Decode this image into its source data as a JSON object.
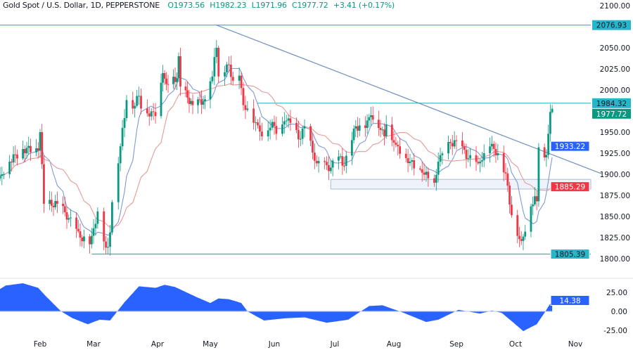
{
  "header": {
    "symbol": "Gold Spot / U.S. Dollar, 1D, PEPPERSTONE",
    "open": "O1973.56",
    "high": "H1982.23",
    "low": "L1971.96",
    "close": "C1977.72",
    "change": "+3.41 (+0.17%)"
  },
  "colors": {
    "up": "#089981",
    "down": "#f23645",
    "fast_ma": "#7e9ad6",
    "slow_ma": "#e59a9a",
    "level": "#26b6c9",
    "trendline": "#6f8fbf",
    "oscillator": "#2962ff",
    "last_price": "#089981"
  },
  "chart_data": [
    {
      "type": "candlestick",
      "title": "Gold Spot / U.S. Dollar, 1D, PEPPERSTONE",
      "y_axis_ticks": [
        "2100.00",
        "2050.00",
        "2025.00",
        "2000.00",
        "1950.00",
        "1925.00",
        "1900.00",
        "1875.00",
        "1850.00",
        "1825.00",
        "1800.00"
      ],
      "x_axis_ticks": [
        "Feb",
        "Mar",
        "Apr",
        "May",
        "Jun",
        "Jul",
        "Aug",
        "Sep",
        "Oct",
        "Nov"
      ],
      "ylim": [
        1800,
        2100
      ],
      "grid": false,
      "last_bar": {
        "date": "2023-10-20",
        "open": 1973.56,
        "high": 1982.23,
        "low": 1971.96,
        "close": 1977.72
      },
      "close_path": [
        [
          "2023-01-11",
          1898
        ],
        [
          "2023-01-16",
          1915
        ],
        [
          "2023-01-23",
          1930
        ],
        [
          "2023-01-31",
          1928
        ],
        [
          "2023-02-01",
          1950
        ],
        [
          "2023-02-02",
          1912
        ],
        [
          "2023-02-03",
          1865
        ],
        [
          "2023-02-10",
          1865
        ],
        [
          "2023-02-14",
          1855
        ],
        [
          "2023-02-22",
          1825
        ],
        [
          "2023-02-27",
          1817
        ],
        [
          "2023-02-28",
          1827
        ],
        [
          "2023-03-01",
          1836
        ],
        [
          "2023-03-03",
          1856
        ],
        [
          "2023-03-07",
          1813
        ],
        [
          "2023-03-08",
          1814
        ],
        [
          "2023-03-09",
          1831
        ],
        [
          "2023-03-10",
          1867
        ],
        [
          "2023-03-13",
          1913
        ],
        [
          "2023-03-17",
          1988
        ],
        [
          "2023-03-20",
          1978
        ],
        [
          "2023-03-23",
          1993
        ],
        [
          "2023-03-24",
          1978
        ],
        [
          "2023-03-31",
          1969
        ],
        [
          "2023-04-04",
          2020
        ],
        [
          "2023-04-06",
          2007
        ],
        [
          "2023-04-12",
          2014
        ],
        [
          "2023-04-13",
          2040
        ],
        [
          "2023-04-14",
          2004
        ],
        [
          "2023-04-21",
          1982
        ],
        [
          "2023-04-28",
          1989
        ],
        [
          "2023-05-02",
          2016
        ],
        [
          "2023-05-03",
          2039
        ],
        [
          "2023-05-04",
          2050
        ],
        [
          "2023-05-05",
          2016
        ],
        [
          "2023-05-08",
          2021
        ],
        [
          "2023-05-10",
          2030
        ],
        [
          "2023-05-12",
          2011
        ],
        [
          "2023-05-15",
          2017
        ],
        [
          "2023-05-17",
          1982
        ],
        [
          "2023-05-19",
          1978
        ],
        [
          "2023-05-24",
          1958
        ],
        [
          "2023-05-26",
          1945
        ],
        [
          "2023-05-31",
          1962
        ],
        [
          "2023-06-02",
          1948
        ],
        [
          "2023-06-06",
          1963
        ],
        [
          "2023-06-09",
          1961
        ],
        [
          "2023-06-14",
          1942
        ],
        [
          "2023-06-16",
          1957
        ],
        [
          "2023-06-22",
          1913
        ],
        [
          "2023-06-29",
          1908
        ],
        [
          "2023-07-03",
          1921
        ],
        [
          "2023-07-06",
          1910
        ],
        [
          "2023-07-12",
          1957
        ],
        [
          "2023-07-17",
          1955
        ],
        [
          "2023-07-20",
          1970
        ],
        [
          "2023-07-24",
          1955
        ],
        [
          "2023-07-27",
          1945
        ],
        [
          "2023-07-28",
          1959
        ],
        [
          "2023-08-02",
          1935
        ],
        [
          "2023-08-09",
          1915
        ],
        [
          "2023-08-15",
          1902
        ],
        [
          "2023-08-21",
          1890
        ],
        [
          "2023-08-23",
          1915
        ],
        [
          "2023-08-29",
          1937
        ],
        [
          "2023-09-01",
          1940
        ],
        [
          "2023-09-07",
          1919
        ],
        [
          "2023-09-12",
          1913
        ],
        [
          "2023-09-15",
          1925
        ],
        [
          "2023-09-18",
          1933
        ],
        [
          "2023-09-20",
          1930
        ],
        [
          "2023-09-22",
          1925
        ],
        [
          "2023-09-26",
          1901
        ],
        [
          "2023-09-28",
          1864
        ],
        [
          "2023-10-02",
          1827
        ],
        [
          "2023-10-04",
          1821
        ],
        [
          "2023-10-06",
          1832
        ],
        [
          "2023-10-09",
          1862
        ],
        [
          "2023-10-11",
          1874
        ],
        [
          "2023-10-12",
          1868
        ],
        [
          "2023-10-13",
          1932
        ],
        [
          "2023-10-16",
          1920
        ],
        [
          "2023-10-17",
          1923
        ],
        [
          "2023-10-18",
          1948
        ],
        [
          "2023-10-19",
          1974
        ],
        [
          "2023-10-20",
          1977.72
        ]
      ],
      "moving_averages": [
        {
          "color_key": "fast_ma",
          "last_value": "1933.22"
        },
        {
          "color_key": "slow_ma",
          "last_value": "1885.29"
        }
      ],
      "levels": [
        {
          "price": 2076.93,
          "label": "2076.93",
          "from": "2023-01-11"
        },
        {
          "price": 1984.32,
          "label": "1984.32",
          "from": "2023-05-24"
        },
        {
          "price": 1805.39,
          "label": "1805.39",
          "from": "2023-02-28"
        }
      ],
      "zone": {
        "top": 1894,
        "bottom": 1882.5,
        "from": "2023-06-29"
      },
      "trendline": [
        [
          "2023-05-04",
          2076.93
        ],
        [
          "2023-09-20",
          1950
        ]
      ],
      "last_price_label": "1977.72"
    },
    {
      "type": "area",
      "y_axis_ticks": [
        "25.00",
        "0.00",
        "-25.00"
      ],
      "ylim": [
        -35,
        40
      ],
      "last_value_label": "14.38",
      "values": [
        [
          "2023-01-10",
          28
        ],
        [
          "2023-01-14",
          34
        ],
        [
          "2023-01-23",
          37
        ],
        [
          "2023-01-31",
          31
        ],
        [
          "2023-02-04",
          20
        ],
        [
          "2023-02-12",
          0
        ],
        [
          "2023-02-18",
          -9
        ],
        [
          "2023-02-26",
          -17
        ],
        [
          "2023-03-04",
          -11
        ],
        [
          "2023-03-09",
          -12
        ],
        [
          "2023-03-16",
          12
        ],
        [
          "2023-03-23",
          33
        ],
        [
          "2023-03-31",
          31
        ],
        [
          "2023-04-05",
          35
        ],
        [
          "2023-04-11",
          32
        ],
        [
          "2023-04-23",
          19
        ],
        [
          "2023-05-01",
          11
        ],
        [
          "2023-05-05",
          17
        ],
        [
          "2023-05-10",
          16
        ],
        [
          "2023-05-16",
          11
        ],
        [
          "2023-05-19",
          0
        ],
        [
          "2023-05-27",
          -12
        ],
        [
          "2023-06-07",
          -9
        ],
        [
          "2023-06-16",
          -8
        ],
        [
          "2023-06-27",
          -15
        ],
        [
          "2023-07-08",
          -11
        ],
        [
          "2023-07-19",
          7
        ],
        [
          "2023-07-26",
          8
        ],
        [
          "2023-08-04",
          0
        ],
        [
          "2023-08-17",
          -14
        ],
        [
          "2023-08-23",
          -11
        ],
        [
          "2023-09-02",
          2
        ],
        [
          "2023-09-13",
          -3
        ],
        [
          "2023-09-19",
          1
        ],
        [
          "2023-09-24",
          -2
        ],
        [
          "2023-10-05",
          -26
        ],
        [
          "2023-10-12",
          -17
        ],
        [
          "2023-10-16",
          -2
        ],
        [
          "2023-10-20",
          14.38
        ]
      ]
    }
  ]
}
